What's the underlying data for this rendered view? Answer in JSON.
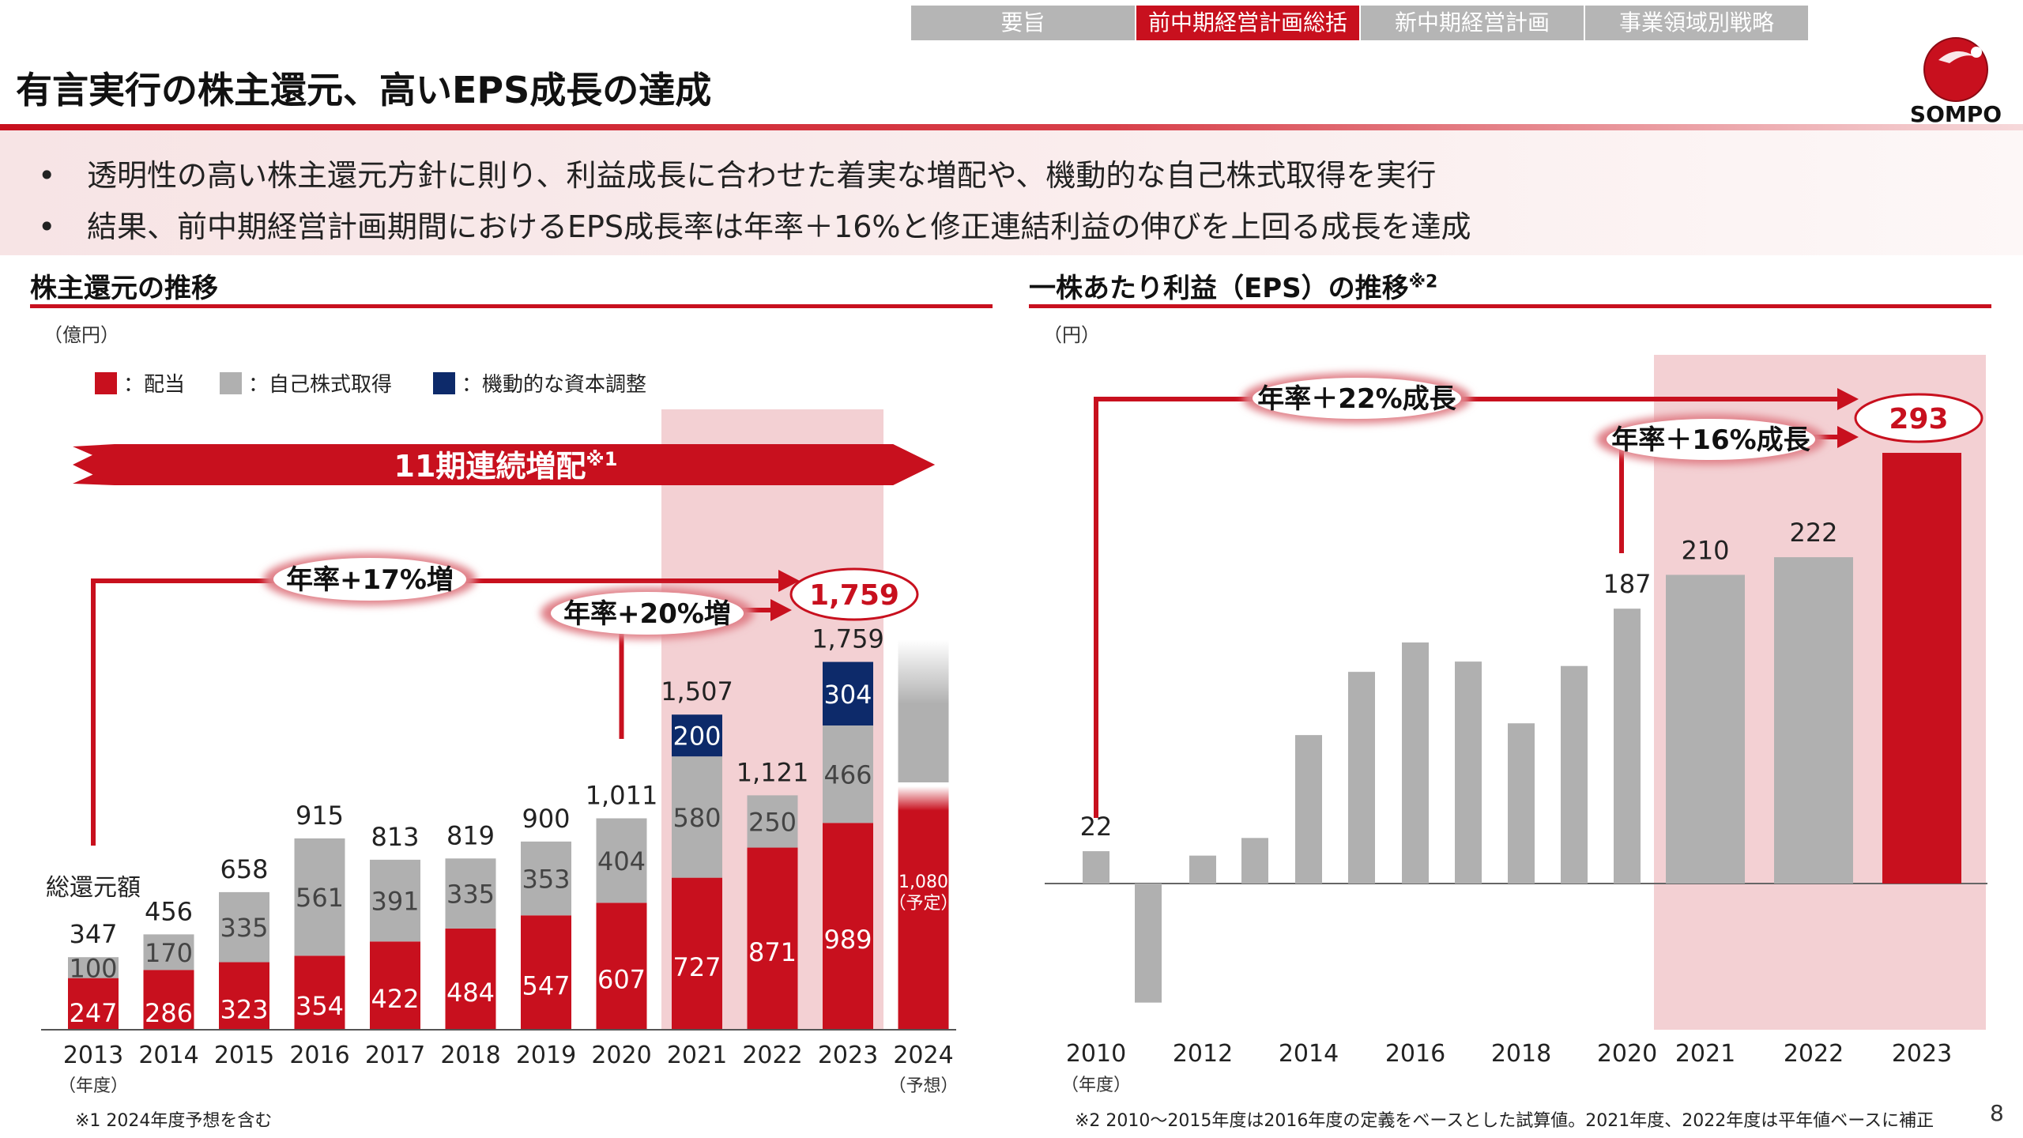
{
  "nav": {
    "tabs": [
      {
        "label": "要旨",
        "active": false
      },
      {
        "label": "前中期経営計画総括",
        "active": true
      },
      {
        "label": "新中期経営計画",
        "active": false
      },
      {
        "label": "事業領域別戦略",
        "active": false
      }
    ]
  },
  "brand": {
    "name": "SOMPO",
    "color": "#c8101e"
  },
  "page": {
    "title": "有言実行の株主還元、高いEPS成長の達成",
    "page_number": "8"
  },
  "bullets": [
    "透明性の高い株主還元方針に則り、利益成長に合わせた着実な増配や、機動的な自己株式取得を実行",
    "結果、前中期経営計画期間におけるEPS成長率は年率＋16%と修正連結利益の伸びを上回る成長を達成"
  ],
  "bullet_symbol": "•",
  "colors": {
    "accent": "#c8101e",
    "gray": "#b0b0b0",
    "navy": "#0d2a6a",
    "highlight": "#f3d0d3"
  },
  "chart_data": [
    {
      "type": "bar",
      "stacked": true,
      "title": "株主還元の推移",
      "unit_label": "（億円）",
      "legend": [
        {
          "label": "：配当",
          "color": "#c8101e"
        },
        {
          "label": "：自己株式取得",
          "color": "#b0b0b0"
        },
        {
          "label": "：機動的な資本調整",
          "color": "#0d2a6a"
        }
      ],
      "categories": [
        "2013",
        "2014",
        "2015",
        "2016",
        "2017",
        "2018",
        "2019",
        "2020",
        "2021",
        "2022",
        "2023",
        "2024"
      ],
      "x_sublabel_left": "（年度）",
      "x_sublabel_right": "（予想）",
      "series": [
        {
          "name": "配当",
          "values": [
            247,
            286,
            323,
            354,
            422,
            484,
            547,
            607,
            727,
            871,
            989,
            1080
          ]
        },
        {
          "name": "自己株式取得",
          "values": [
            100,
            170,
            335,
            561,
            391,
            335,
            353,
            404,
            580,
            250,
            466,
            0
          ]
        },
        {
          "name": "機動的な資本調整",
          "values": [
            0,
            0,
            0,
            0,
            0,
            0,
            0,
            0,
            200,
            0,
            304,
            0
          ]
        }
      ],
      "totals": [
        "347",
        "456",
        "658",
        "915",
        "813",
        "819",
        "900",
        "1,011",
        "1,507",
        "1,121",
        "1,759",
        null
      ],
      "total_label": "総還元額",
      "forecast_label": "1,080\n（予定）",
      "banner": "11期連続増配",
      "banner_note": "※1",
      "annotations": [
        "年率+17%増",
        "年率+20%増"
      ],
      "highlight_value": "1,759",
      "highlight_range": [
        "2021",
        "2023"
      ],
      "ylim": [
        0,
        1900
      ],
      "footnote": "※1 2024年度予想を含む"
    },
    {
      "type": "bar",
      "title": "一株あたり利益（EPS）の推移",
      "title_note": "※2",
      "unit_label": "（円）",
      "categories": [
        "2010",
        "2011",
        "2012",
        "2013",
        "2014",
        "2015",
        "2016",
        "2017",
        "2018",
        "2019",
        "2020",
        "2021",
        "2022",
        "2023"
      ],
      "tick_labels": [
        "2010",
        "",
        "2012",
        "",
        "2014",
        "",
        "2016",
        "",
        "2018",
        "",
        "2020",
        "2021",
        "2022",
        "2023"
      ],
      "x_sublabel_left": "（年度）",
      "values": [
        22,
        -81,
        19,
        31,
        101,
        144,
        164,
        151,
        109,
        148,
        187,
        210,
        222,
        293
      ],
      "value_labels": [
        "22",
        "",
        "",
        "",
        "",
        "",
        "",
        "",
        "",
        "",
        "187",
        "210",
        "222",
        "293"
      ],
      "annotations": [
        "年率＋22%成長",
        "年率＋16%成長"
      ],
      "highlight_value": "293",
      "highlight_range": [
        "2021",
        "2023"
      ],
      "ylim": [
        -90,
        300
      ],
      "footnote": "※2 2010～2015年度は2016年度の定義をベースとした試算値。2021年度、2022年度は平年値ベースに補正"
    }
  ]
}
